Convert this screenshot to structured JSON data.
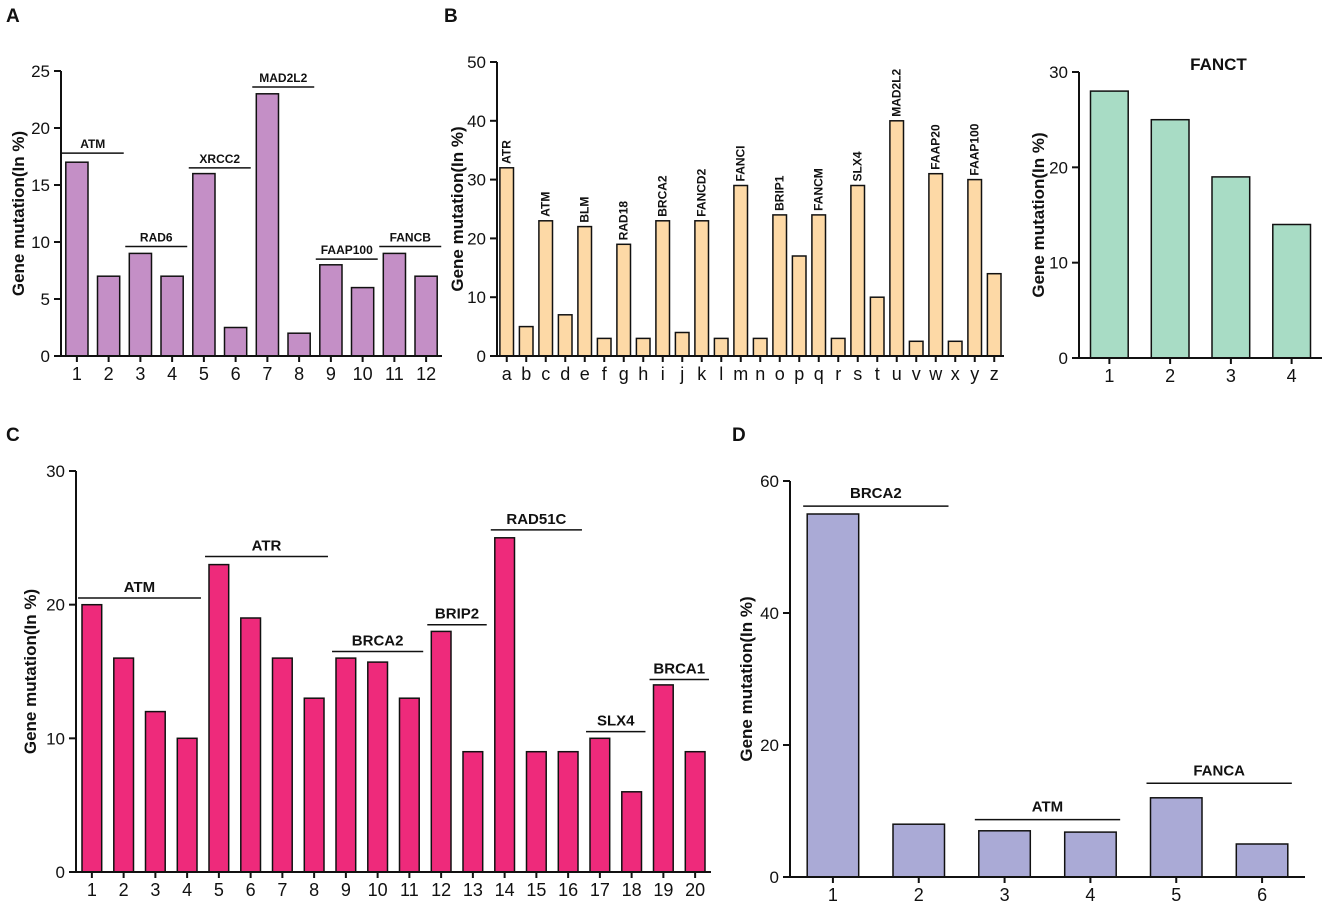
{
  "panel_letters": {
    "A": "A",
    "B": "B",
    "C": "C",
    "D": "D"
  },
  "colors": {
    "A": "#c48fc6",
    "B1": "#fdd9a6",
    "B2": "#a8dcc5",
    "C": "#ee2a7b",
    "D": "#aaaad6",
    "outline": "#111111"
  },
  "chart_data": [
    {
      "id": "A",
      "type": "bar",
      "title": "",
      "xlabel": "",
      "ylabel": "Gene mutation(In %)",
      "ylim": [
        0,
        25
      ],
      "yticks": [
        0,
        5,
        10,
        15,
        20,
        25
      ],
      "categories": [
        "1",
        "2",
        "3",
        "4",
        "5",
        "6",
        "7",
        "8",
        "9",
        "10",
        "11",
        "12"
      ],
      "values": [
        17,
        7,
        9,
        7,
        16,
        2.5,
        23,
        2,
        8,
        6,
        9,
        7
      ],
      "annotations": [
        {
          "text": "ATM",
          "from": 0,
          "to": 1,
          "level": 17.8
        },
        {
          "text": "RAD6",
          "from": 2,
          "to": 3,
          "level": 9.6
        },
        {
          "text": "XRCC2",
          "from": 4,
          "to": 5,
          "level": 16.5
        },
        {
          "text": "MAD2L2",
          "from": 6,
          "to": 7,
          "level": 23.6
        },
        {
          "text": "FAAP100",
          "from": 8,
          "to": 9,
          "level": 8.5
        },
        {
          "text": "FANCB",
          "from": 10,
          "to": 11,
          "level": 9.6
        }
      ]
    },
    {
      "id": "B1",
      "type": "bar",
      "title": "",
      "xlabel": "",
      "ylabel": "Gene mutation(In %)",
      "ylim": [
        0,
        50
      ],
      "yticks": [
        0,
        10,
        20,
        30,
        40,
        50
      ],
      "categories": [
        "a",
        "b",
        "c",
        "d",
        "e",
        "f",
        "g",
        "h",
        "i",
        "j",
        "k",
        "l",
        "m",
        "n",
        "o",
        "p",
        "q",
        "r",
        "s",
        "t",
        "u",
        "v",
        "w",
        "x",
        "y",
        "z"
      ],
      "values": [
        32,
        5,
        23,
        7,
        22,
        3,
        19,
        3,
        23,
        4,
        23,
        3,
        29,
        3,
        24,
        17,
        24,
        3,
        29,
        10,
        40,
        2.5,
        31,
        2.5,
        30,
        14
      ],
      "bar_labels": [
        {
          "index": 0,
          "text": "ATR"
        },
        {
          "index": 2,
          "text": "ATM"
        },
        {
          "index": 4,
          "text": "BLM"
        },
        {
          "index": 6,
          "text": "RAD18"
        },
        {
          "index": 8,
          "text": "BRCA2"
        },
        {
          "index": 10,
          "text": "FANCD2"
        },
        {
          "index": 12,
          "text": "FANCI"
        },
        {
          "index": 14,
          "text": "BRIP1"
        },
        {
          "index": 16,
          "text": "FANCM"
        },
        {
          "index": 18,
          "text": "SLX4"
        },
        {
          "index": 20,
          "text": "MAD2L2"
        },
        {
          "index": 22,
          "text": "FAAP20"
        },
        {
          "index": 24,
          "text": "FAAP100"
        }
      ]
    },
    {
      "id": "B2",
      "type": "bar",
      "title": "FANCT",
      "xlabel": "",
      "ylabel": "Gene mutation(In %)",
      "ylim": [
        0,
        30
      ],
      "yticks": [
        0,
        10,
        20,
        30
      ],
      "categories": [
        "1",
        "2",
        "3",
        "4"
      ],
      "values": [
        28,
        25,
        19,
        14
      ]
    },
    {
      "id": "C",
      "type": "bar",
      "title": "",
      "xlabel": "",
      "ylabel": "Gene mutation(In %)",
      "ylim": [
        0,
        30
      ],
      "yticks": [
        0,
        10,
        20,
        30
      ],
      "categories": [
        "1",
        "2",
        "3",
        "4",
        "5",
        "6",
        "7",
        "8",
        "9",
        "10",
        "11",
        "12",
        "13",
        "14",
        "15",
        "16",
        "17",
        "18",
        "19",
        "20"
      ],
      "values": [
        20,
        16,
        12,
        10,
        23,
        19,
        16,
        13,
        16,
        15.7,
        13,
        18,
        9,
        25,
        9,
        9,
        10,
        6,
        14,
        9
      ],
      "annotations": [
        {
          "text": "ATM",
          "from": 0,
          "to": 3,
          "level": 20.5
        },
        {
          "text": "ATR",
          "from": 4,
          "to": 7,
          "level": 23.6
        },
        {
          "text": "BRCA2",
          "from": 8,
          "to": 10,
          "level": 16.5
        },
        {
          "text": "BRIP2",
          "from": 11,
          "to": 12,
          "level": 18.5
        },
        {
          "text": "RAD51C",
          "from": 13,
          "to": 15,
          "level": 25.6
        },
        {
          "text": "SLX4",
          "from": 16,
          "to": 17,
          "level": 10.5
        },
        {
          "text": "BRCA1",
          "from": 18,
          "to": 19,
          "level": 14.4
        }
      ]
    },
    {
      "id": "D",
      "type": "bar",
      "title": "",
      "xlabel": "",
      "ylabel": "Gene mutation(In %)",
      "ylim": [
        0,
        60
      ],
      "yticks": [
        0,
        20,
        40,
        60
      ],
      "categories": [
        "1",
        "2",
        "3",
        "4",
        "5",
        "6"
      ],
      "values": [
        55,
        8,
        7,
        6.8,
        12,
        5
      ],
      "annotations": [
        {
          "text": "BRCA2",
          "from": 0,
          "to": 1,
          "level": 56.2
        },
        {
          "text": "ATM",
          "from": 2,
          "to": 3,
          "level": 8.7
        },
        {
          "text": "FANCA",
          "from": 4,
          "to": 5,
          "level": 14.2
        }
      ]
    }
  ]
}
